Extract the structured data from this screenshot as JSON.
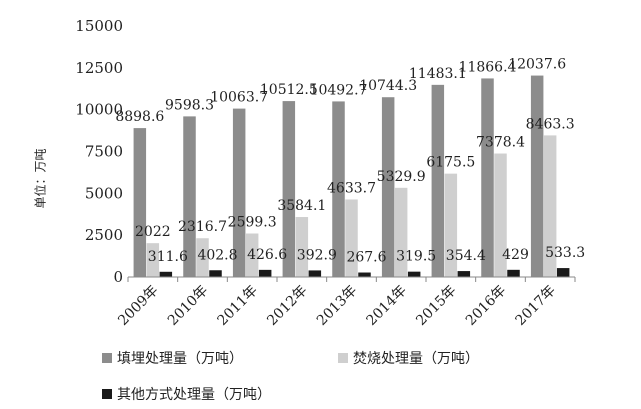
{
  "chart_data": {
    "type": "bar",
    "categories": [
      "2009年",
      "2010年",
      "2011年",
      "2012年",
      "2013年",
      "2014年",
      "2015年",
      "2016年",
      "2017年"
    ],
    "series": [
      {
        "name": "填埋处理量（万吨）",
        "color": "#8c8c8c",
        "values": [
          8898.6,
          9598.3,
          10063.7,
          10512.5,
          10492.7,
          10744.3,
          11483.1,
          11866.4,
          12037.6
        ]
      },
      {
        "name": "焚烧处理量（万吨）",
        "color": "#cfcfcf",
        "values": [
          2022,
          2316.7,
          2599.3,
          3584.1,
          4633.7,
          5329.9,
          6175.5,
          7378.4,
          8463.3
        ]
      },
      {
        "name": "其他方式处理量（万吨）",
        "color": "#1a1a1a",
        "values": [
          311.6,
          402.8,
          426.6,
          392.9,
          267.6,
          319.5,
          354.4,
          429,
          533.3
        ]
      }
    ],
    "yticks": [
      "0",
      "2500",
      "5000",
      "7500",
      "10000",
      "12500",
      "15000"
    ],
    "ylim": [
      0,
      15000
    ],
    "ylabel": "单位：万吨",
    "grid": false,
    "legend": "bottom"
  }
}
